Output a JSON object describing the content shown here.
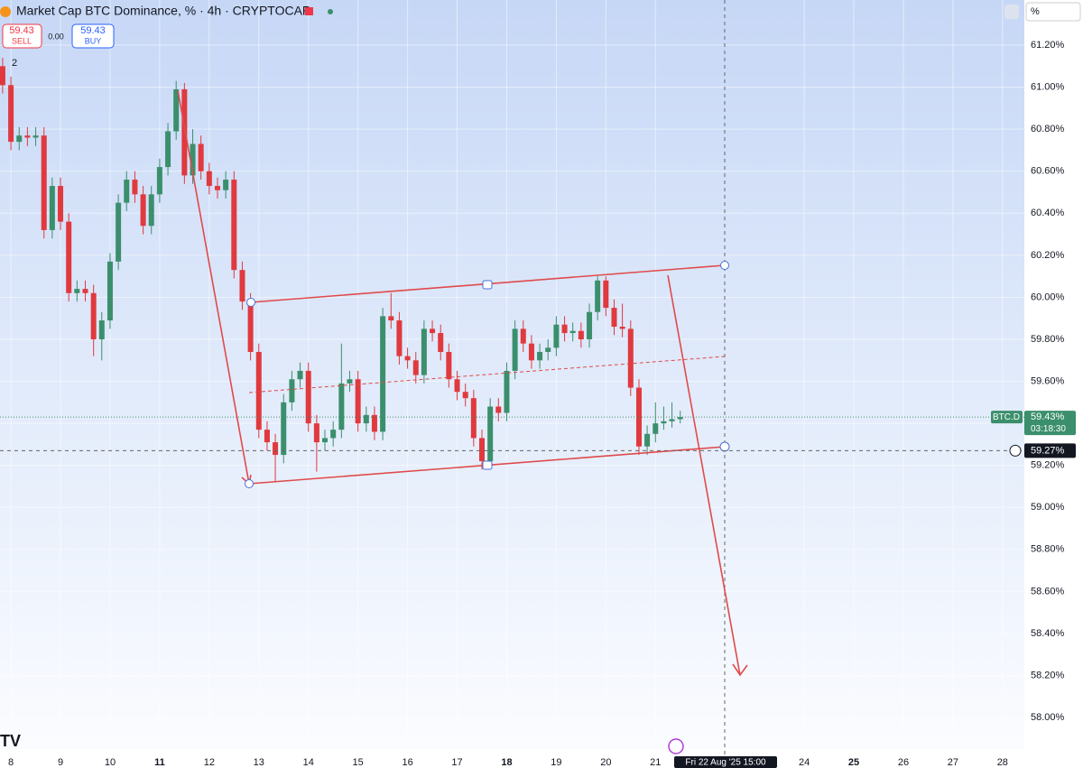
{
  "chart_data": {
    "type": "candlestick",
    "title": "Market Cap BTC Dominance, % · 4h · CRYPTOCAP",
    "x": [
      7.833,
      8,
      8.167,
      8.333,
      8.5,
      8.667,
      8.833,
      9,
      9.167,
      9.333,
      9.5,
      9.667,
      9.833,
      10,
      10.167,
      10.333,
      10.5,
      10.667,
      10.833,
      11,
      11.167,
      11.333,
      11.5,
      11.667,
      11.833,
      12,
      12.167,
      12.333,
      12.5,
      12.667,
      12.833,
      13,
      13.167,
      13.333,
      13.5,
      13.667,
      13.833,
      14,
      14.167,
      14.333,
      14.5,
      14.667,
      14.833,
      15,
      15.167,
      15.333,
      15.5,
      15.667,
      15.833,
      16,
      16.167,
      16.333,
      16.5,
      16.667,
      16.833,
      17,
      17.167,
      17.333,
      17.5,
      17.667,
      17.833,
      18,
      18.167,
      18.333,
      18.5,
      18.667,
      18.833,
      19,
      19.167,
      19.333,
      19.5,
      19.667,
      19.833,
      20,
      20.167,
      20.333,
      20.5,
      20.667,
      20.833,
      21,
      21.167,
      21.333,
      21.5
    ],
    "open": [
      61.1,
      61.01,
      60.74,
      60.77,
      60.76,
      60.77,
      60.32,
      60.53,
      60.36,
      60.02,
      60.04,
      60.02,
      59.8,
      59.89,
      60.17,
      60.45,
      60.56,
      60.49,
      60.34,
      60.49,
      60.62,
      60.79,
      60.99,
      60.58,
      60.73,
      60.6,
      60.53,
      60.51,
      60.56,
      60.13,
      59.98,
      59.74,
      59.37,
      59.31,
      59.25,
      59.5,
      59.61,
      59.65,
      59.4,
      59.31,
      59.33,
      59.37,
      59.59,
      59.61,
      59.4,
      59.44,
      59.36,
      59.91,
      59.89,
      59.72,
      59.7,
      59.63,
      59.85,
      59.83,
      59.74,
      59.61,
      59.55,
      59.52,
      59.33,
      59.22,
      59.48,
      59.45,
      59.65,
      59.85,
      59.78,
      59.7,
      59.74,
      59.76,
      59.87,
      59.83,
      59.84,
      59.8,
      59.93,
      60.08,
      59.95,
      59.86,
      59.85,
      59.57,
      59.29,
      59.35,
      59.4,
      59.41,
      59.42
    ],
    "high": [
      61.14,
      61.05,
      60.81,
      60.81,
      60.81,
      60.81,
      60.57,
      60.57,
      60.4,
      60.08,
      60.08,
      60.06,
      59.93,
      60.21,
      60.49,
      60.6,
      60.6,
      60.53,
      60.53,
      60.66,
      60.83,
      61.03,
      61.02,
      60.8,
      60.77,
      60.64,
      60.57,
      60.6,
      60.6,
      60.17,
      60.02,
      59.78,
      59.41,
      59.35,
      59.54,
      59.65,
      59.69,
      59.69,
      59.44,
      59.37,
      59.41,
      59.78,
      59.65,
      59.65,
      59.48,
      59.48,
      59.95,
      60.02,
      59.93,
      59.76,
      59.74,
      59.89,
      59.89,
      59.87,
      59.78,
      59.65,
      59.59,
      59.56,
      59.37,
      59.52,
      59.52,
      59.69,
      59.89,
      59.89,
      59.82,
      59.78,
      59.8,
      59.91,
      59.91,
      59.88,
      59.88,
      59.97,
      60.1,
      60.1,
      59.99,
      59.97,
      59.89,
      59.61,
      59.39,
      59.5,
      59.48,
      59.5,
      59.46
    ],
    "low": [
      60.97,
      60.7,
      60.7,
      60.72,
      60.72,
      60.28,
      60.28,
      60.32,
      59.98,
      59.98,
      59.98,
      59.72,
      59.7,
      59.85,
      60.13,
      60.41,
      60.45,
      60.3,
      60.3,
      60.45,
      60.58,
      60.75,
      60.54,
      60.54,
      60.56,
      60.49,
      60.47,
      60.47,
      60.09,
      59.94,
      59.7,
      59.33,
      59.27,
      59.12,
      59.21,
      59.46,
      59.57,
      59.36,
      59.17,
      59.27,
      59.29,
      59.33,
      59.55,
      59.36,
      59.36,
      59.32,
      59.32,
      59.85,
      59.68,
      59.66,
      59.59,
      59.59,
      59.79,
      59.7,
      59.57,
      59.51,
      59.48,
      59.29,
      59.18,
      59.18,
      59.41,
      59.41,
      59.61,
      59.74,
      59.66,
      59.66,
      59.7,
      59.72,
      59.79,
      59.79,
      59.76,
      59.76,
      59.89,
      59.91,
      59.82,
      59.81,
      59.53,
      59.25,
      59.25,
      59.31,
      59.37,
      59.38,
      59.4
    ],
    "close": [
      61.01,
      60.74,
      60.77,
      60.76,
      60.77,
      60.32,
      60.53,
      60.36,
      60.02,
      60.04,
      60.02,
      59.8,
      59.89,
      60.17,
      60.45,
      60.56,
      60.49,
      60.34,
      60.49,
      60.62,
      60.79,
      60.99,
      60.58,
      60.73,
      60.6,
      60.53,
      60.51,
      60.56,
      60.13,
      59.98,
      59.74,
      59.37,
      59.31,
      59.25,
      59.5,
      59.61,
      59.65,
      59.4,
      59.31,
      59.33,
      59.37,
      59.59,
      59.61,
      59.4,
      59.44,
      59.36,
      59.91,
      59.89,
      59.72,
      59.7,
      59.63,
      59.85,
      59.83,
      59.74,
      59.61,
      59.55,
      59.52,
      59.33,
      59.22,
      59.48,
      59.45,
      59.65,
      59.85,
      59.78,
      59.7,
      59.74,
      59.76,
      59.87,
      59.83,
      59.84,
      59.8,
      59.93,
      60.08,
      59.95,
      59.86,
      59.85,
      59.57,
      59.29,
      59.35,
      59.4,
      59.41,
      59.42,
      59.43
    ],
    "up_color": "#3b8f6c",
    "down_color": "#e0393e",
    "xlim": [
      7.78,
      28.44
    ],
    "xticks": [
      8,
      9,
      10,
      11,
      12,
      13,
      14,
      15,
      16,
      17,
      18,
      19,
      20,
      21,
      24,
      25,
      26,
      27,
      28
    ],
    "ylim": [
      57.85,
      61.415
    ],
    "yticks": [
      {
        "value": 61.2,
        "label": "61.20%"
      },
      {
        "value": 61.0,
        "label": "61.00%"
      },
      {
        "value": 60.8,
        "label": "60.80%"
      },
      {
        "value": 60.6,
        "label": "60.60%"
      },
      {
        "value": 60.4,
        "label": "60.40%"
      },
      {
        "value": 60.2,
        "label": "60.20%"
      },
      {
        "value": 60.0,
        "label": "60.00%"
      },
      {
        "value": 59.8,
        "label": "59.80%"
      },
      {
        "value": 59.6,
        "label": "59.60%"
      },
      {
        "value": 59.4,
        "label": "59.40%"
      },
      {
        "value": 59.2,
        "label": "59.20%"
      },
      {
        "value": 59.0,
        "label": "59.00%"
      },
      {
        "value": 58.8,
        "label": "58.80%"
      },
      {
        "value": 58.6,
        "label": "58.60%"
      },
      {
        "value": 58.4,
        "label": "58.40%"
      },
      {
        "value": 58.2,
        "label": "58.20%"
      },
      {
        "value": 58.0,
        "label": "58.00%"
      }
    ],
    "grid": true,
    "last_price": {
      "value": 59.43,
      "label": "59.43%"
    },
    "symbol_tag": "BTC.D",
    "countdown": "03:18:30",
    "crosshair_price": {
      "value": 59.27,
      "label": "59.27%"
    },
    "crosshair_time": "Fri 22 Aug '25 15:00"
  },
  "ui": {
    "sell_price": 59.43,
    "sell_label": "SELL",
    "spread": "0.00",
    "buy_price": 59.43,
    "buy_label": "BUY",
    "indicator_count": 2,
    "unit_button": "%"
  }
}
